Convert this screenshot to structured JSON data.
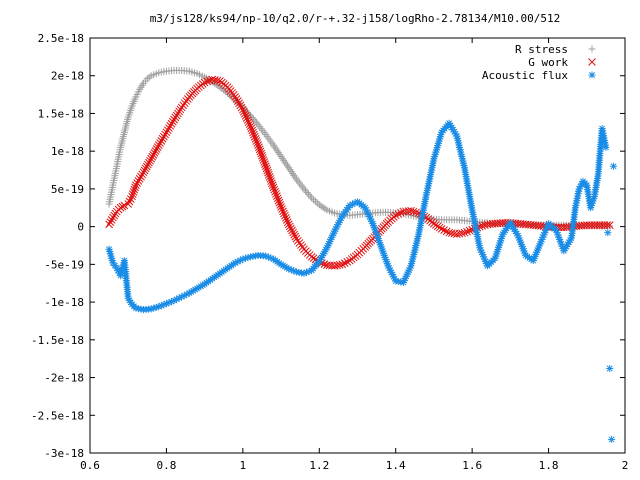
{
  "chart_data": {
    "type": "scatter",
    "title": "m3/js128/ks94/np-10/q2.0/r-+.32-j158/logRho-2.78134/M10.00/512",
    "xlabel": "",
    "ylabel": "",
    "xlim": [
      0.6,
      2.0
    ],
    "ylim": [
      -3e-18,
      2.5e-18
    ],
    "grid": false,
    "legend_position": "top-right",
    "x_ticks": [
      "0.6",
      "0.8",
      "1",
      "1.2",
      "1.4",
      "1.6",
      "1.8",
      "2"
    ],
    "y_ticks": [
      "2.5e-18",
      "2e-18",
      "1.5e-18",
      "1e-18",
      "5e-19",
      "0",
      "-5e-19",
      "-1e-18",
      "-1.5e-18",
      "-2e-18",
      "-2.5e-18",
      "-3e-18"
    ],
    "series": [
      {
        "name": "R stress",
        "color": "#a0a0a0",
        "marker": "plus",
        "points": [
          [
            0.65,
            3e-19
          ],
          [
            0.66,
            5.5e-19
          ],
          [
            0.67,
            8e-19
          ],
          [
            0.68,
            1.05e-18
          ],
          [
            0.69,
            1.25e-18
          ],
          [
            0.7,
            1.45e-18
          ],
          [
            0.71,
            1.6e-18
          ],
          [
            0.72,
            1.72e-18
          ],
          [
            0.73,
            1.82e-18
          ],
          [
            0.74,
            1.9e-18
          ],
          [
            0.75,
            1.96e-18
          ],
          [
            0.76,
            2e-18
          ],
          [
            0.78,
            2.04e-18
          ],
          [
            0.8,
            2.06e-18
          ],
          [
            0.82,
            2.07e-18
          ],
          [
            0.84,
            2.07e-18
          ],
          [
            0.86,
            2.06e-18
          ],
          [
            0.88,
            2.03e-18
          ],
          [
            0.9,
            1.98e-18
          ],
          [
            0.92,
            1.92e-18
          ],
          [
            0.94,
            1.85e-18
          ],
          [
            0.96,
            1.77e-18
          ],
          [
            0.98,
            1.68e-18
          ],
          [
            1.0,
            1.58e-18
          ],
          [
            1.02,
            1.47e-18
          ],
          [
            1.04,
            1.35e-18
          ],
          [
            1.06,
            1.22e-18
          ],
          [
            1.08,
            1.08e-18
          ],
          [
            1.1,
            9.3e-19
          ],
          [
            1.12,
            7.8e-19
          ],
          [
            1.14,
            6.3e-19
          ],
          [
            1.16,
            5e-19
          ],
          [
            1.18,
            3.8e-19
          ],
          [
            1.2,
            2.9e-19
          ],
          [
            1.22,
            2.2e-19
          ],
          [
            1.24,
            1.8e-19
          ],
          [
            1.26,
            1.6e-19
          ],
          [
            1.28,
            1.5e-19
          ],
          [
            1.3,
            1.6e-19
          ],
          [
            1.32,
            1.7e-19
          ],
          [
            1.34,
            1.8e-19
          ],
          [
            1.36,
            1.9e-19
          ],
          [
            1.38,
            1.9e-19
          ],
          [
            1.4,
            1.8e-19
          ],
          [
            1.42,
            1.7e-19
          ],
          [
            1.44,
            1.5e-19
          ],
          [
            1.46,
            1.3e-19
          ],
          [
            1.48,
            1.1e-19
          ],
          [
            1.5,
            1e-19
          ],
          [
            1.52,
            9e-20
          ],
          [
            1.54,
            9e-20
          ],
          [
            1.56,
            9e-20
          ],
          [
            1.58,
            8e-20
          ],
          [
            1.6,
            7e-20
          ],
          [
            1.62,
            6e-20
          ],
          [
            1.64,
            5e-20
          ],
          [
            1.66,
            4e-20
          ],
          [
            1.68,
            4e-20
          ],
          [
            1.7,
            3e-20
          ],
          [
            1.72,
            3e-20
          ],
          [
            1.74,
            3e-20
          ],
          [
            1.76,
            2e-20
          ],
          [
            1.78,
            2e-20
          ],
          [
            1.8,
            2e-20
          ],
          [
            1.82,
            2e-20
          ],
          [
            1.84,
            2e-20
          ],
          [
            1.86,
            2e-20
          ],
          [
            1.88,
            2e-20
          ],
          [
            1.9,
            1e-20
          ],
          [
            1.92,
            1e-20
          ],
          [
            1.94,
            1e-20
          ],
          [
            1.96,
            1e-20
          ]
        ]
      },
      {
        "name": "G work",
        "color": "#e01010",
        "marker": "cross",
        "points": [
          [
            0.65,
            3e-20
          ],
          [
            0.66,
            1.2e-19
          ],
          [
            0.67,
            2e-19
          ],
          [
            0.68,
            2.5e-19
          ],
          [
            0.69,
            2.8e-19
          ],
          [
            0.7,
            3e-19
          ],
          [
            0.71,
            4e-19
          ],
          [
            0.72,
            5.5e-19
          ],
          [
            0.74,
            7.2e-19
          ],
          [
            0.76,
            9e-19
          ],
          [
            0.78,
            1.08e-18
          ],
          [
            0.8,
            1.25e-18
          ],
          [
            0.82,
            1.42e-18
          ],
          [
            0.84,
            1.58e-18
          ],
          [
            0.86,
            1.72e-18
          ],
          [
            0.88,
            1.83e-18
          ],
          [
            0.9,
            1.91e-18
          ],
          [
            0.92,
            1.95e-18
          ],
          [
            0.94,
            1.93e-18
          ],
          [
            0.96,
            1.85e-18
          ],
          [
            0.98,
            1.72e-18
          ],
          [
            1.0,
            1.55e-18
          ],
          [
            1.02,
            1.33e-18
          ],
          [
            1.04,
            1.08e-18
          ],
          [
            1.06,
            8e-19
          ],
          [
            1.08,
            5.2e-19
          ],
          [
            1.1,
            2.6e-19
          ],
          [
            1.12,
            3e-20
          ],
          [
            1.14,
            -1.6e-19
          ],
          [
            1.16,
            -3e-19
          ],
          [
            1.18,
            -4e-19
          ],
          [
            1.2,
            -4.7e-19
          ],
          [
            1.22,
            -5.1e-19
          ],
          [
            1.24,
            -5.2e-19
          ],
          [
            1.26,
            -5e-19
          ],
          [
            1.28,
            -4.5e-19
          ],
          [
            1.3,
            -3.7e-19
          ],
          [
            1.32,
            -2.7e-19
          ],
          [
            1.34,
            -1.6e-19
          ],
          [
            1.36,
            -5e-20
          ],
          [
            1.38,
            6e-20
          ],
          [
            1.4,
            1.5e-19
          ],
          [
            1.42,
            2e-19
          ],
          [
            1.44,
            2.1e-19
          ],
          [
            1.46,
            1.8e-19
          ],
          [
            1.48,
            1.2e-19
          ],
          [
            1.5,
            4e-20
          ],
          [
            1.52,
            -3e-20
          ],
          [
            1.54,
            -8e-20
          ],
          [
            1.56,
            -1e-19
          ],
          [
            1.58,
            -8e-20
          ],
          [
            1.6,
            -4e-20
          ],
          [
            1.62,
            0.0
          ],
          [
            1.64,
            3e-20
          ],
          [
            1.66,
            4e-20
          ],
          [
            1.68,
            5e-20
          ],
          [
            1.7,
            5e-20
          ],
          [
            1.72,
            4e-20
          ],
          [
            1.74,
            3e-20
          ],
          [
            1.76,
            2e-20
          ],
          [
            1.78,
            1e-20
          ],
          [
            1.8,
            0.0
          ],
          [
            1.82,
            -1e-20
          ],
          [
            1.84,
            -1e-20
          ],
          [
            1.86,
            0.0
          ],
          [
            1.88,
            1e-20
          ],
          [
            1.9,
            2e-20
          ],
          [
            1.92,
            2e-20
          ],
          [
            1.94,
            2e-20
          ],
          [
            1.96,
            2e-20
          ]
        ]
      },
      {
        "name": "Acoustic flux",
        "color": "#1a8ce6",
        "marker": "star",
        "points": [
          [
            0.65,
            -3e-19
          ],
          [
            0.66,
            -4.8e-19
          ],
          [
            0.67,
            -5.5e-19
          ],
          [
            0.68,
            -6.5e-19
          ],
          [
            0.69,
            -4.5e-19
          ],
          [
            0.7,
            -9.5e-19
          ],
          [
            0.71,
            -1.03e-18
          ],
          [
            0.72,
            -1.08e-18
          ],
          [
            0.74,
            -1.1e-18
          ],
          [
            0.76,
            -1.09e-18
          ],
          [
            0.78,
            -1.06e-18
          ],
          [
            0.8,
            -1.02e-18
          ],
          [
            0.82,
            -9.8e-19
          ],
          [
            0.84,
            -9.3e-19
          ],
          [
            0.86,
            -8.8e-19
          ],
          [
            0.88,
            -8.2e-19
          ],
          [
            0.9,
            -7.6e-19
          ],
          [
            0.92,
            -6.9e-19
          ],
          [
            0.94,
            -6.2e-19
          ],
          [
            0.96,
            -5.5e-19
          ],
          [
            0.98,
            -4.8e-19
          ],
          [
            1.0,
            -4.3e-19
          ],
          [
            1.02,
            -4e-19
          ],
          [
            1.04,
            -3.8e-19
          ],
          [
            1.06,
            -3.9e-19
          ],
          [
            1.08,
            -4.3e-19
          ],
          [
            1.1,
            -5e-19
          ],
          [
            1.12,
            -5.6e-19
          ],
          [
            1.14,
            -6e-19
          ],
          [
            1.16,
            -6.2e-19
          ],
          [
            1.18,
            -5.8e-19
          ],
          [
            1.2,
            -4.6e-19
          ],
          [
            1.22,
            -2.8e-19
          ],
          [
            1.24,
            -6e-20
          ],
          [
            1.26,
            1.4e-19
          ],
          [
            1.28,
            2.8e-19
          ],
          [
            1.3,
            3.3e-19
          ],
          [
            1.32,
            2.5e-19
          ],
          [
            1.34,
            4e-20
          ],
          [
            1.36,
            -2.4e-19
          ],
          [
            1.38,
            -5.2e-19
          ],
          [
            1.4,
            -7.2e-19
          ],
          [
            1.42,
            -7.4e-19
          ],
          [
            1.44,
            -5.2e-19
          ],
          [
            1.46,
            -1e-19
          ],
          [
            1.48,
            4.2e-19
          ],
          [
            1.5,
            9e-19
          ],
          [
            1.52,
            1.25e-18
          ],
          [
            1.54,
            1.37e-18
          ],
          [
            1.56,
            1.2e-18
          ],
          [
            1.58,
            7.8e-19
          ],
          [
            1.6,
            2.2e-19
          ],
          [
            1.62,
            -2.8e-19
          ],
          [
            1.64,
            -5.2e-19
          ],
          [
            1.66,
            -4.2e-19
          ],
          [
            1.68,
            -1e-19
          ],
          [
            1.7,
            5e-20
          ],
          [
            1.72,
            -1.2e-19
          ],
          [
            1.74,
            -3.8e-19
          ],
          [
            1.76,
            -4.5e-19
          ],
          [
            1.78,
            -2e-19
          ],
          [
            1.8,
            4e-20
          ],
          [
            1.82,
            -5e-20
          ],
          [
            1.84,
            -3.2e-19
          ],
          [
            1.86,
            -1.5e-19
          ],
          [
            1.87,
            2.5e-19
          ],
          [
            1.88,
            5e-19
          ],
          [
            1.89,
            6e-19
          ],
          [
            1.9,
            5.5e-19
          ],
          [
            1.91,
            2.5e-19
          ],
          [
            1.92,
            4e-19
          ],
          [
            1.93,
            7e-19
          ],
          [
            1.94,
            1.3e-18
          ],
          [
            1.95,
            1.05e-18
          ],
          [
            1.96,
            -1.88e-18
          ],
          [
            1.97,
            8e-19
          ],
          [
            1.965,
            -2.82e-18
          ],
          [
            1.955,
            -8e-20
          ]
        ]
      }
    ]
  }
}
